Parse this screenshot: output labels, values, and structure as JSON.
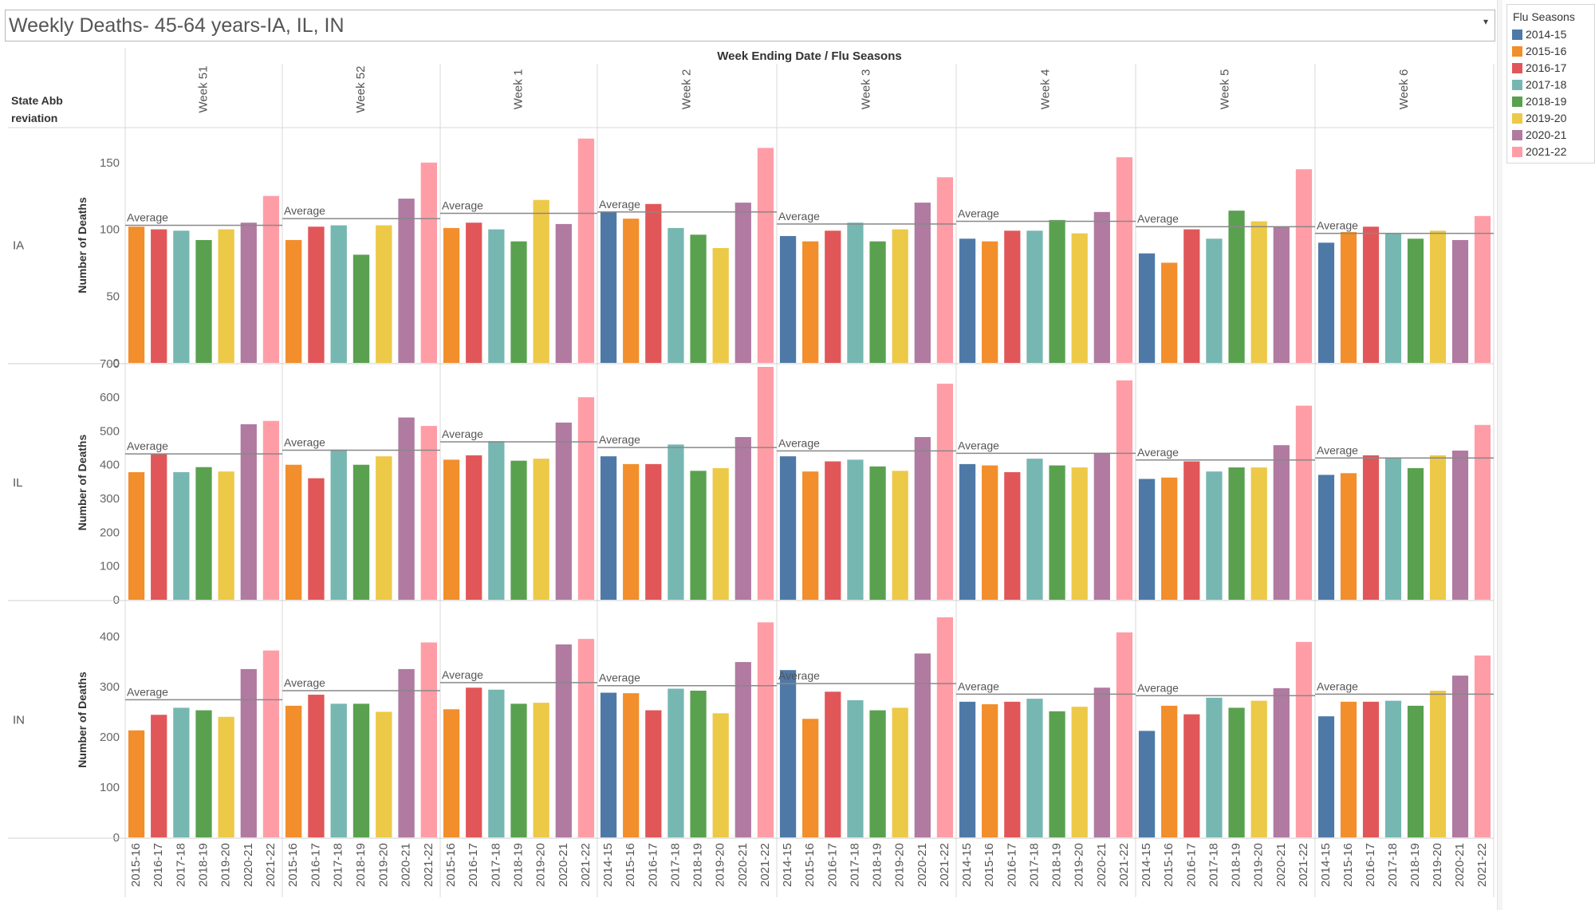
{
  "title": "Weekly Deaths- 45-64 years-IA, IL, IN",
  "title_dropdown_icon": "▾",
  "legend": {
    "title": "Flu Seasons",
    "items": [
      {
        "label": "2014-15",
        "color": "#4e79a7"
      },
      {
        "label": "2015-16",
        "color": "#f28e2b"
      },
      {
        "label": "2016-17",
        "color": "#e15759"
      },
      {
        "label": "2017-18",
        "color": "#76b7b2"
      },
      {
        "label": "2018-19",
        "color": "#59a14f"
      },
      {
        "label": "2019-20",
        "color": "#edc948"
      },
      {
        "label": "2020-21",
        "color": "#b07aa1"
      },
      {
        "label": "2021-22",
        "color": "#ff9da7"
      }
    ]
  },
  "chart_data": {
    "type": "bar",
    "title": "Weekly Deaths- 45-64 years-IA, IL, IN",
    "column_header": "Week Ending Date  /  Flu Seasons",
    "row_header": "State Abbreviation",
    "row_header_lines": [
      "State Abb",
      "reviation"
    ],
    "ylabel": "Number of Deaths",
    "reference_line_label": "Average",
    "seasons": [
      "2014-15",
      "2015-16",
      "2016-17",
      "2017-18",
      "2018-19",
      "2019-20",
      "2020-21",
      "2021-22"
    ],
    "season_colors": {
      "2014-15": "#4e79a7",
      "2015-16": "#f28e2b",
      "2016-17": "#e15759",
      "2017-18": "#76b7b2",
      "2018-19": "#59a14f",
      "2019-20": "#edc948",
      "2020-21": "#b07aa1",
      "2021-22": "#ff9da7"
    },
    "weeks": [
      {
        "label": "Week 51",
        "seasons": [
          "2015-16",
          "2016-17",
          "2017-18",
          "2018-19",
          "2019-20",
          "2020-21",
          "2021-22"
        ]
      },
      {
        "label": "Week 52",
        "seasons": [
          "2015-16",
          "2016-17",
          "2017-18",
          "2018-19",
          "2019-20",
          "2020-21",
          "2021-22"
        ]
      },
      {
        "label": "Week 1",
        "seasons": [
          "2015-16",
          "2016-17",
          "2017-18",
          "2018-19",
          "2019-20",
          "2020-21",
          "2021-22"
        ]
      },
      {
        "label": "Week 2",
        "seasons": [
          "2014-15",
          "2015-16",
          "2016-17",
          "2017-18",
          "2018-19",
          "2019-20",
          "2020-21",
          "2021-22"
        ]
      },
      {
        "label": "Week 3",
        "seasons": [
          "2014-15",
          "2015-16",
          "2016-17",
          "2017-18",
          "2018-19",
          "2019-20",
          "2020-21",
          "2021-22"
        ]
      },
      {
        "label": "Week 4",
        "seasons": [
          "2014-15",
          "2015-16",
          "2016-17",
          "2017-18",
          "2018-19",
          "2019-20",
          "2020-21",
          "2021-22"
        ]
      },
      {
        "label": "Week 5",
        "seasons": [
          "2014-15",
          "2015-16",
          "2016-17",
          "2017-18",
          "2018-19",
          "2019-20",
          "2020-21",
          "2021-22"
        ]
      },
      {
        "label": "Week 6",
        "seasons": [
          "2014-15",
          "2015-16",
          "2016-17",
          "2017-18",
          "2018-19",
          "2019-20",
          "2020-21",
          "2021-22"
        ]
      }
    ],
    "states": [
      {
        "name": "IA",
        "ylim": [
          0,
          175
        ],
        "ticks": [
          0,
          50,
          100,
          150
        ],
        "values": [
          [
            102,
            100,
            99,
            92,
            100,
            105,
            125
          ],
          [
            92,
            102,
            103,
            81,
            103,
            123,
            150
          ],
          [
            101,
            105,
            100,
            91,
            122,
            104,
            168
          ],
          [
            113,
            108,
            119,
            101,
            96,
            86,
            120,
            161
          ],
          [
            95,
            91,
            99,
            105,
            91,
            100,
            120,
            139
          ],
          [
            93,
            91,
            99,
            99,
            107,
            97,
            113,
            154
          ],
          [
            82,
            75,
            100,
            93,
            114,
            106,
            102,
            145
          ],
          [
            90,
            98,
            102,
            97,
            93,
            99,
            92,
            110
          ]
        ],
        "averages": [
          103,
          108,
          112,
          113,
          104,
          106,
          102,
          97
        ]
      },
      {
        "name": "IL",
        "ylim": [
          0,
          690
        ],
        "ticks": [
          0,
          100,
          200,
          300,
          400,
          500,
          600,
          700
        ],
        "values": [
          [
            378,
            432,
            378,
            393,
            380,
            520,
            530
          ],
          [
            400,
            360,
            445,
            400,
            425,
            540,
            515
          ],
          [
            415,
            428,
            470,
            412,
            418,
            525,
            600
          ],
          [
            425,
            402,
            402,
            460,
            382,
            390,
            482,
            690
          ],
          [
            425,
            380,
            410,
            415,
            395,
            382,
            482,
            640
          ],
          [
            402,
            398,
            378,
            418,
            398,
            392,
            435,
            650
          ],
          [
            358,
            362,
            410,
            380,
            392,
            392,
            458,
            575
          ],
          [
            370,
            375,
            428,
            422,
            390,
            428,
            442,
            518
          ]
        ],
        "averages": [
          432,
          443,
          468,
          451,
          441,
          434,
          414,
          420
        ]
      },
      {
        "name": "IN",
        "ylim": [
          0,
          465
        ],
        "ticks": [
          0,
          100,
          200,
          300,
          400
        ],
        "values": [
          [
            213,
            244,
            258,
            253,
            240,
            335,
            372
          ],
          [
            262,
            284,
            266,
            266,
            250,
            335,
            388
          ],
          [
            255,
            298,
            294,
            266,
            268,
            384,
            395
          ],
          [
            288,
            287,
            253,
            296,
            292,
            247,
            349,
            428
          ],
          [
            333,
            236,
            290,
            273,
            253,
            258,
            366,
            438
          ],
          [
            270,
            265,
            270,
            276,
            251,
            260,
            298,
            408
          ],
          [
            212,
            262,
            245,
            278,
            258,
            272,
            297,
            389
          ],
          [
            241,
            270,
            270,
            272,
            262,
            292,
            322,
            362
          ]
        ],
        "averages": [
          274,
          292,
          308,
          302,
          306,
          285,
          282,
          285
        ]
      }
    ]
  }
}
